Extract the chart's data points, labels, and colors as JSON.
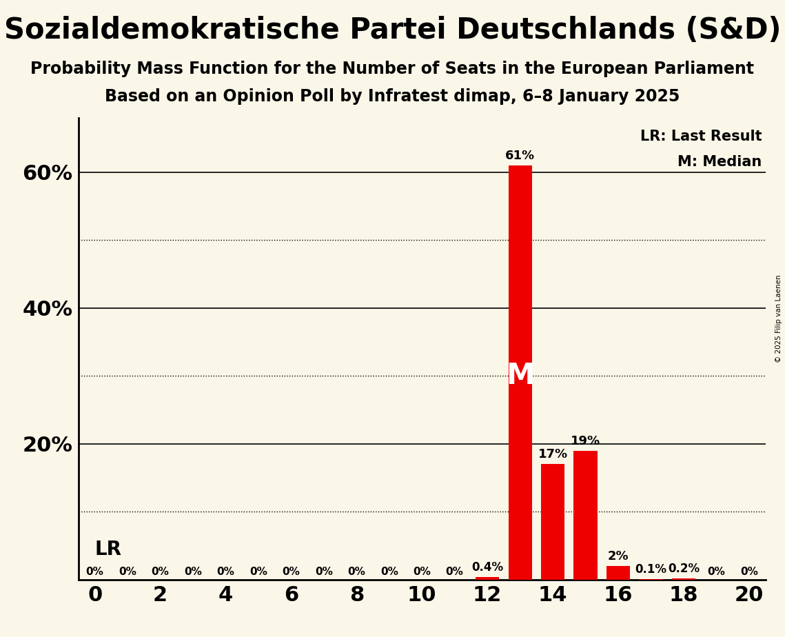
{
  "title": "Sozialdemokratische Partei Deutschlands (S&D)",
  "subtitle1": "Probability Mass Function for the Number of Seats in the European Parliament",
  "subtitle2": "Based on an Opinion Poll by Infratest dimap, 6–8 January 2025",
  "copyright": "© 2025 Filip van Laenen",
  "seats": [
    0,
    1,
    2,
    3,
    4,
    5,
    6,
    7,
    8,
    9,
    10,
    11,
    12,
    13,
    14,
    15,
    16,
    17,
    18,
    19,
    20
  ],
  "probabilities": [
    0.0,
    0.0,
    0.0,
    0.0,
    0.0,
    0.0,
    0.0,
    0.0,
    0.0,
    0.0,
    0.0,
    0.0,
    0.4,
    61.0,
    17.0,
    19.0,
    2.0,
    0.1,
    0.2,
    0.0,
    0.0
  ],
  "bar_color": "#ee0000",
  "background_color": "#faf6e8",
  "median_seat": 13,
  "last_result_seat": 13,
  "legend_lr": "LR: Last Result",
  "legend_m": "M: Median",
  "solid_lines": [
    20,
    40,
    60
  ],
  "dotted_lines": [
    10,
    30,
    50
  ],
  "ytick_positions": [
    0,
    20,
    40,
    60
  ],
  "ytick_labels": [
    "",
    "20%",
    "40%",
    "60%"
  ],
  "xlim": [
    -0.5,
    20.5
  ],
  "ylim": [
    0,
    68
  ],
  "bar_width": 0.72,
  "title_fontsize": 30,
  "subtitle_fontsize": 17,
  "axis_tick_fontsize": 22,
  "bar_label_fontsize": 13,
  "legend_fontsize": 15,
  "median_label_fontsize": 30,
  "lr_label_fontsize": 20,
  "copyright_fontsize": 7.5
}
